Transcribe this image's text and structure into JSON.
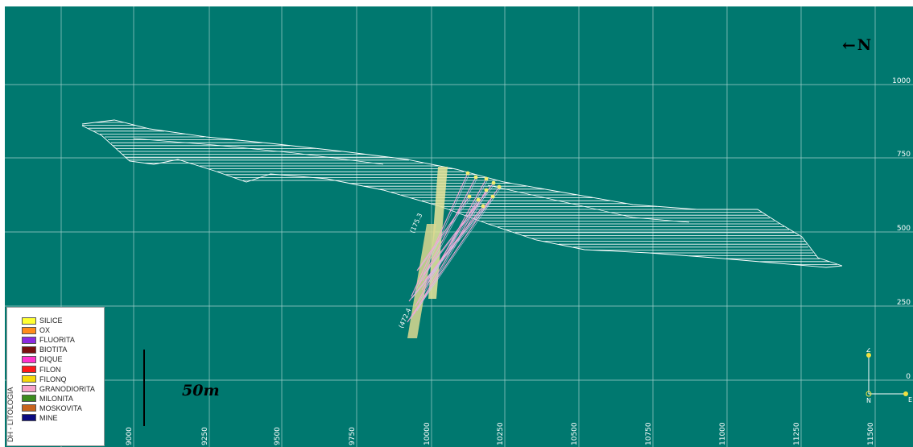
{
  "view": {
    "background": "#00786f",
    "grid_color": "#9fcfca",
    "line_color": "#ffffff"
  },
  "y_axis": {
    "labels": [
      "1000",
      "750",
      "500",
      "250",
      "0"
    ]
  },
  "x_axis": {
    "labels": [
      "9000",
      "9250",
      "9500",
      "9750",
      "10000",
      "10250",
      "10500",
      "10750",
      "11000",
      "11250",
      "11500"
    ]
  },
  "north": {
    "arrow_icon": "left-arrow-icon",
    "label": "N"
  },
  "scale_bar": {
    "label": "50m"
  },
  "legend": {
    "title": "DH - LITOLOGIA",
    "items": [
      {
        "label": "SILICE",
        "color": "#ffff33"
      },
      {
        "label": "OX",
        "color": "#ff8c1a"
      },
      {
        "label": "FLUORITA",
        "color": "#8a2be2"
      },
      {
        "label": "BIOTITA",
        "color": "#7a1010"
      },
      {
        "label": "DIQUE",
        "color": "#ff33cc"
      },
      {
        "label": "FILON",
        "color": "#ff1a1a"
      },
      {
        "label": "FILONQ",
        "color": "#f5d90a"
      },
      {
        "label": "GRANODIORITA",
        "color": "#f7a1c8"
      },
      {
        "label": "MILONITA",
        "color": "#3c8c1e"
      },
      {
        "label": "MOSKOVITA",
        "color": "#c8641e"
      },
      {
        "label": "MINE",
        "color": "#0a0a80"
      }
    ]
  },
  "drillholes": {
    "labels": [
      "(175.3",
      "(472.4"
    ]
  },
  "orientation_axes": {
    "z": "Z",
    "n": "N",
    "e": "E"
  }
}
